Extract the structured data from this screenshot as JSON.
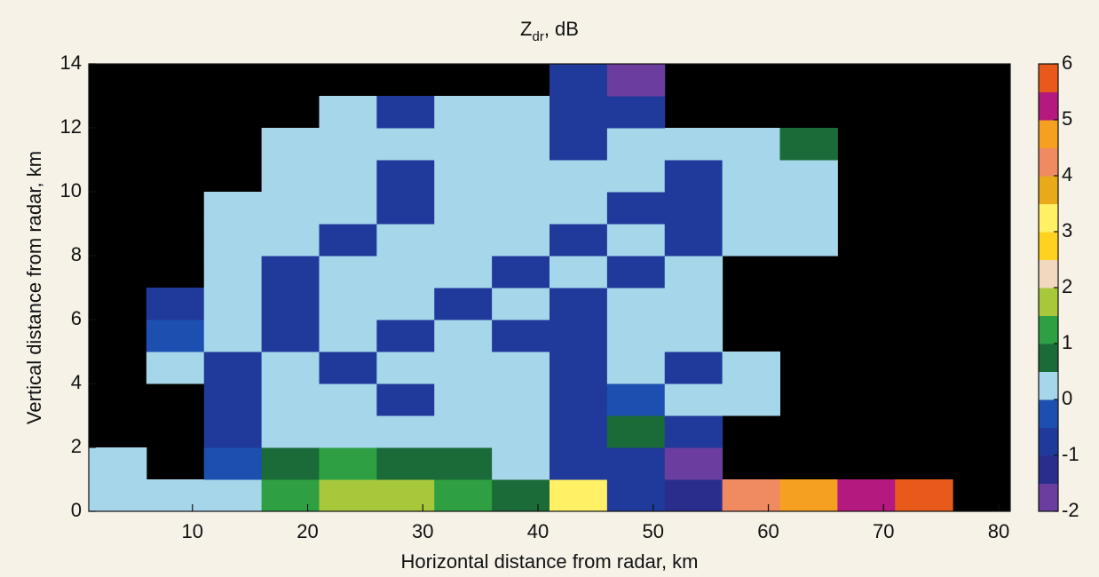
{
  "chart_data": {
    "type": "heatmap",
    "title": "Z",
    "title_sub": "dr",
    "title_suffix": ", dB",
    "xlabel": "Horizontal distance from radar, km",
    "ylabel": "Vertical distance from radar, km",
    "x": [
      1,
      6,
      11,
      16,
      21,
      26,
      31,
      36,
      41,
      46,
      51,
      56,
      61,
      66,
      71,
      76,
      81
    ],
    "y": [
      0,
      1,
      2,
      3,
      4,
      5,
      6,
      7,
      8,
      9,
      10,
      11,
      12,
      13,
      14
    ],
    "values": [
      [
        0.2,
        0.2,
        0.3,
        1.2,
        1.7,
        1.7,
        1.2,
        0.8,
        3.2,
        -0.8,
        -1.2,
        4.2,
        4.8,
        5.2,
        5.6,
        null
      ],
      [
        0.2,
        null,
        -0.3,
        0.8,
        1.2,
        0.8,
        0.6,
        0.3,
        -0.8,
        -0.8,
        -1.7,
        null,
        null,
        null,
        null,
        null
      ],
      [
        null,
        null,
        -0.8,
        0.2,
        0.3,
        0.2,
        0.3,
        0.2,
        -0.8,
        0.8,
        -0.8,
        null,
        null,
        null,
        null,
        null
      ],
      [
        null,
        null,
        -0.8,
        0.2,
        0.3,
        -0.8,
        0.2,
        0.3,
        -0.8,
        -0.3,
        0.2,
        0.2,
        null,
        null,
        null,
        null
      ],
      [
        null,
        0.2,
        -0.8,
        0.2,
        -0.8,
        0.2,
        0.3,
        0.2,
        -0.8,
        0.2,
        -0.8,
        0.2,
        null,
        null,
        null,
        null
      ],
      [
        null,
        -0.3,
        0.2,
        -0.8,
        0.2,
        -0.8,
        0.2,
        -0.8,
        -0.8,
        0.2,
        0.2,
        null,
        null,
        null,
        null,
        null
      ],
      [
        null,
        -0.8,
        0.2,
        -0.8,
        0.2,
        0.2,
        -0.8,
        0.2,
        -0.8,
        0.2,
        0.2,
        null,
        null,
        null,
        null,
        null
      ],
      [
        null,
        null,
        0.2,
        -0.8,
        0.2,
        0.2,
        0.2,
        -0.8,
        0.2,
        -0.8,
        0.2,
        null,
        null,
        null,
        null,
        null
      ],
      [
        null,
        null,
        0.2,
        0.2,
        -0.8,
        0.2,
        0.2,
        0.2,
        -0.8,
        0.2,
        -0.8,
        0.2,
        0.2,
        null,
        null,
        null
      ],
      [
        null,
        null,
        0.2,
        0.2,
        0.2,
        -0.8,
        0.2,
        0.2,
        0.2,
        -0.8,
        -0.8,
        0.2,
        0.2,
        null,
        null,
        null
      ],
      [
        null,
        null,
        null,
        0.2,
        0.2,
        -0.8,
        0.2,
        0.2,
        0.2,
        0.2,
        -0.8,
        0.2,
        0.2,
        null,
        null,
        null
      ],
      [
        null,
        null,
        null,
        0.2,
        0.2,
        0.2,
        0.2,
        0.2,
        -0.8,
        0.2,
        0.2,
        0.2,
        0.8,
        null,
        null,
        null
      ],
      [
        null,
        null,
        null,
        null,
        0.2,
        -0.8,
        0.2,
        0.2,
        -0.8,
        -0.8,
        null,
        null,
        null,
        null,
        null,
        null
      ],
      [
        null,
        null,
        null,
        null,
        null,
        null,
        null,
        null,
        -0.8,
        -1.7,
        null,
        null,
        null,
        null,
        null,
        null
      ]
    ],
    "xlim": [
      1,
      81
    ],
    "xticks": [
      10,
      20,
      30,
      40,
      50,
      60,
      70,
      80
    ],
    "ylim": [
      0,
      14
    ],
    "yticks": [
      0,
      2,
      4,
      6,
      8,
      10,
      12,
      14
    ],
    "clim": [
      -2,
      6
    ],
    "cticks": [
      -2,
      -1,
      0,
      1,
      2,
      3,
      4,
      5,
      6
    ],
    "colors": [
      "#6b3d9e",
      "#2b2d8c",
      "#1f3a9a",
      "#1c4fb0",
      "#a6d6ea",
      "#1a6b38",
      "#2ea043",
      "#a8c83c",
      "#f2d8bf",
      "#ffd21f",
      "#fff066",
      "#e8aa18",
      "#f08a60",
      "#f5a020",
      "#b3197e",
      "#e85a1c"
    ],
    "background": "#000000"
  }
}
